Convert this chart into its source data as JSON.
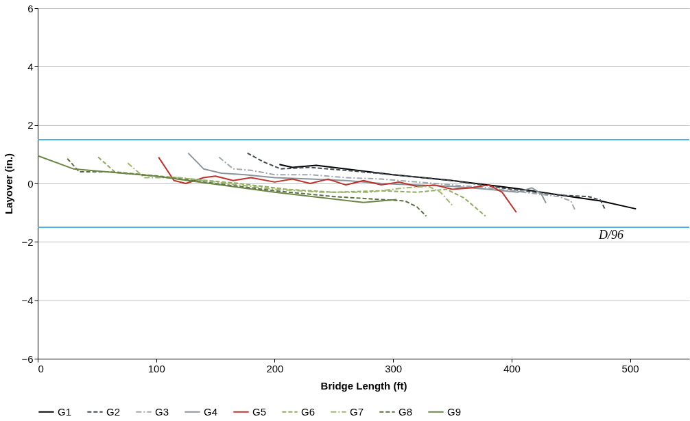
{
  "chart_data": {
    "type": "line",
    "xlabel": "Bridge Length (ft)",
    "ylabel": "Layover (in.)",
    "xlim": [
      0,
      550
    ],
    "xticks": [
      0,
      100,
      200,
      300,
      400,
      500
    ],
    "ylim": [
      -6,
      6
    ],
    "yticks": [
      -6,
      -4,
      -2,
      0,
      2,
      4,
      6
    ],
    "grid": "y",
    "legend": "bottom",
    "marker": "none",
    "ref_lines": [
      {
        "axis": "y",
        "value": 1.5,
        "color": "#4ab0e6"
      },
      {
        "axis": "y",
        "value": -1.5,
        "label": "D/96",
        "color": "#4ab0e6"
      }
    ],
    "series": [
      {
        "name": "G1",
        "color": "#000000",
        "line_style": "solid",
        "x": [
          204,
          215,
          235,
          260,
          300,
          350,
          400,
          450,
          475,
          505
        ],
        "values": [
          0.65,
          0.55,
          0.62,
          0.5,
          0.3,
          0.1,
          -0.15,
          -0.45,
          -0.6,
          -0.87
        ]
      },
      {
        "name": "G2",
        "color": "#404a50",
        "line_style": "dashed",
        "x": [
          177,
          190,
          205,
          230,
          260,
          300,
          350,
          400,
          440,
          465,
          475,
          479
        ],
        "values": [
          1.04,
          0.75,
          0.5,
          0.55,
          0.45,
          0.3,
          0.1,
          -0.2,
          -0.4,
          -0.45,
          -0.57,
          -0.9
        ]
      },
      {
        "name": "G3",
        "color": "#a0a6ac",
        "line_style": "dashdot",
        "x": [
          153,
          165,
          180,
          200,
          230,
          260,
          290,
          320,
          350,
          380,
          410,
          440,
          450,
          454
        ],
        "values": [
          0.9,
          0.5,
          0.45,
          0.3,
          0.3,
          0.2,
          0.15,
          0.05,
          -0.05,
          -0.15,
          -0.3,
          -0.45,
          -0.6,
          -0.95
        ]
      },
      {
        "name": "G4",
        "color": "#8a949c",
        "line_style": "solid",
        "x": [
          127,
          140,
          155,
          175,
          200,
          230,
          260,
          290,
          320,
          350,
          380,
          405,
          417,
          425,
          429
        ],
        "values": [
          1.04,
          0.5,
          0.35,
          0.3,
          0.2,
          0.15,
          0.1,
          0.0,
          -0.05,
          -0.1,
          -0.2,
          -0.3,
          -0.15,
          -0.35,
          -0.67
        ]
      },
      {
        "name": "G5",
        "color": "#c0302a",
        "line_style": "solid",
        "x": [
          102,
          115,
          125,
          140,
          150,
          165,
          180,
          200,
          215,
          230,
          245,
          260,
          275,
          290,
          305,
          320,
          335,
          350,
          365,
          381,
          392,
          404
        ],
        "values": [
          0.9,
          0.1,
          0.0,
          0.2,
          0.25,
          0.1,
          0.2,
          0.05,
          0.15,
          0.0,
          0.15,
          -0.05,
          0.1,
          -0.05,
          0.05,
          -0.1,
          -0.05,
          -0.2,
          -0.15,
          -0.05,
          -0.3,
          -0.99
        ]
      },
      {
        "name": "G6",
        "color": "#8faa5a",
        "line_style": "dashed",
        "x": [
          51,
          65,
          90,
          130,
          170,
          210,
          250,
          290,
          320,
          345,
          360,
          378
        ],
        "values": [
          0.9,
          0.4,
          0.3,
          0.15,
          0.0,
          -0.2,
          -0.3,
          -0.25,
          -0.3,
          -0.2,
          -0.5,
          -1.12
        ]
      },
      {
        "name": "G7",
        "color": "#9bb86a",
        "line_style": "dashdot",
        "x": [
          76,
          90,
          120,
          160,
          200,
          240,
          280,
          310,
          330,
          340,
          350
        ],
        "values": [
          0.7,
          0.2,
          0.2,
          0.0,
          -0.2,
          -0.3,
          -0.3,
          -0.15,
          -0.1,
          -0.3,
          -0.75
        ]
      },
      {
        "name": "G8",
        "color": "#5a7040",
        "line_style": "dashed",
        "x": [
          25,
          35,
          60,
          100,
          150,
          200,
          250,
          290,
          310,
          320,
          328
        ],
        "values": [
          0.85,
          0.4,
          0.4,
          0.25,
          0.0,
          -0.25,
          -0.45,
          -0.55,
          -0.6,
          -0.8,
          -1.12
        ]
      },
      {
        "name": "G9",
        "color": "#6b8545",
        "line_style": "solid",
        "x": [
          0,
          30,
          100,
          200,
          275,
          303
        ],
        "values": [
          0.95,
          0.5,
          0.25,
          -0.3,
          -0.65,
          -0.55
        ]
      }
    ]
  }
}
